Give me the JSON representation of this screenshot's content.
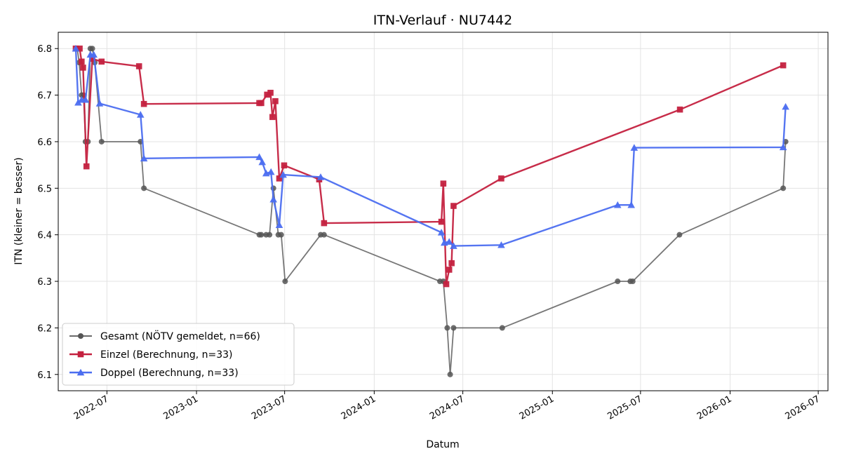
{
  "chart_data": {
    "type": "line",
    "title": "ITN-Verlauf · NU7442",
    "xlabel": "Datum",
    "ylabel": "ITN  (kleiner = besser)",
    "xlim": [
      "2022-03-23",
      "2026-07-21"
    ],
    "ylim": [
      6.065,
      6.835
    ],
    "x_ticks": [
      "2022-07",
      "2023-01",
      "2023-07",
      "2024-01",
      "2024-07",
      "2025-01",
      "2025-07",
      "2026-01",
      "2026-07"
    ],
    "y_ticks": [
      "6.1",
      "6.2",
      "6.3",
      "6.4",
      "6.5",
      "6.6",
      "6.7",
      "6.8"
    ],
    "grid": true,
    "legend_position": "bottom-left",
    "series": [
      {
        "name": "Gesamt (NÖTV gemeldet, n=66)",
        "color": "#555555",
        "marker": "circle",
        "points": [
          [
            "2022-05-01",
            6.8
          ],
          [
            "2022-05-05",
            6.77
          ],
          [
            "2022-05-10",
            6.7
          ],
          [
            "2022-05-14",
            6.7
          ],
          [
            "2022-05-18",
            6.6
          ],
          [
            "2022-05-23",
            6.6
          ],
          [
            "2022-05-28",
            6.8
          ],
          [
            "2022-06-01",
            6.8
          ],
          [
            "2022-06-06",
            6.77
          ],
          [
            "2022-06-20",
            6.6
          ],
          [
            "2022-09-08",
            6.6
          ],
          [
            "2022-09-15",
            6.5
          ],
          [
            "2023-05-10",
            6.4
          ],
          [
            "2023-05-14",
            6.4
          ],
          [
            "2023-05-24",
            6.4
          ],
          [
            "2023-05-31",
            6.4
          ],
          [
            "2023-06-08",
            6.5
          ],
          [
            "2023-06-18",
            6.4
          ],
          [
            "2023-06-24",
            6.4
          ],
          [
            "2023-07-02",
            6.3
          ],
          [
            "2023-09-13",
            6.4
          ],
          [
            "2023-09-20",
            6.4
          ],
          [
            "2024-05-15",
            6.3
          ],
          [
            "2024-05-22",
            6.3
          ],
          [
            "2024-05-30",
            6.2
          ],
          [
            "2024-06-05",
            6.1
          ],
          [
            "2024-06-12",
            6.2
          ],
          [
            "2024-09-20",
            6.2
          ],
          [
            "2025-05-15",
            6.3
          ],
          [
            "2025-06-10",
            6.3
          ],
          [
            "2025-06-15",
            6.3
          ],
          [
            "2025-09-19",
            6.4
          ],
          [
            "2026-04-20",
            6.5
          ],
          [
            "2026-04-25",
            6.6
          ]
        ]
      },
      {
        "name": "Einzel (Berechnung, n=33)",
        "color": "#c4213f",
        "marker": "square",
        "points": [
          [
            "2022-04-28",
            6.8
          ],
          [
            "2022-05-06",
            6.8
          ],
          [
            "2022-05-10",
            6.772
          ],
          [
            "2022-05-13",
            6.759
          ],
          [
            "2022-05-20",
            6.547
          ],
          [
            "2022-06-01",
            6.778
          ],
          [
            "2022-06-20",
            6.772
          ],
          [
            "2022-09-05",
            6.762
          ],
          [
            "2022-09-15",
            6.681
          ],
          [
            "2023-05-10",
            6.683
          ],
          [
            "2023-05-14",
            6.683
          ],
          [
            "2023-05-26",
            6.701
          ],
          [
            "2023-06-02",
            6.705
          ],
          [
            "2023-06-06",
            6.653
          ],
          [
            "2023-06-12",
            6.687
          ],
          [
            "2023-06-20",
            6.521
          ],
          [
            "2023-06-30",
            6.549
          ],
          [
            "2023-09-10",
            6.519
          ],
          [
            "2023-09-20",
            6.425
          ],
          [
            "2024-05-18",
            6.428
          ],
          [
            "2024-05-22",
            6.51
          ],
          [
            "2024-05-28",
            6.294
          ],
          [
            "2024-06-03",
            6.325
          ],
          [
            "2024-06-08",
            6.339
          ],
          [
            "2024-06-12",
            6.462
          ],
          [
            "2024-09-18",
            6.521
          ],
          [
            "2025-09-20",
            6.669
          ],
          [
            "2026-04-20",
            6.764
          ]
        ]
      },
      {
        "name": "Doppel (Berechnung, n=33)",
        "color": "#4c6ef0",
        "marker": "triangle",
        "points": [
          [
            "2022-04-28",
            6.8
          ],
          [
            "2022-05-03",
            6.684
          ],
          [
            "2022-05-10",
            6.69
          ],
          [
            "2022-05-18",
            6.69
          ],
          [
            "2022-05-28",
            6.787
          ],
          [
            "2022-06-04",
            6.787
          ],
          [
            "2022-06-16",
            6.682
          ],
          [
            "2022-09-08",
            6.658
          ],
          [
            "2022-09-15",
            6.564
          ],
          [
            "2023-05-10",
            6.567
          ],
          [
            "2023-05-16",
            6.556
          ],
          [
            "2023-05-24",
            6.532
          ],
          [
            "2023-06-03",
            6.535
          ],
          [
            "2023-06-08",
            6.476
          ],
          [
            "2023-06-20",
            6.421
          ],
          [
            "2023-06-28",
            6.529
          ],
          [
            "2023-09-13",
            6.524
          ],
          [
            "2024-05-18",
            6.405
          ],
          [
            "2024-05-24",
            6.383
          ],
          [
            "2024-06-03",
            6.385
          ],
          [
            "2024-06-12",
            6.376
          ],
          [
            "2024-09-18",
            6.378
          ],
          [
            "2025-05-15",
            6.464
          ],
          [
            "2025-06-12",
            6.464
          ],
          [
            "2025-06-18",
            6.587
          ],
          [
            "2026-04-20",
            6.588
          ],
          [
            "2026-04-25",
            6.675
          ]
        ]
      }
    ]
  }
}
